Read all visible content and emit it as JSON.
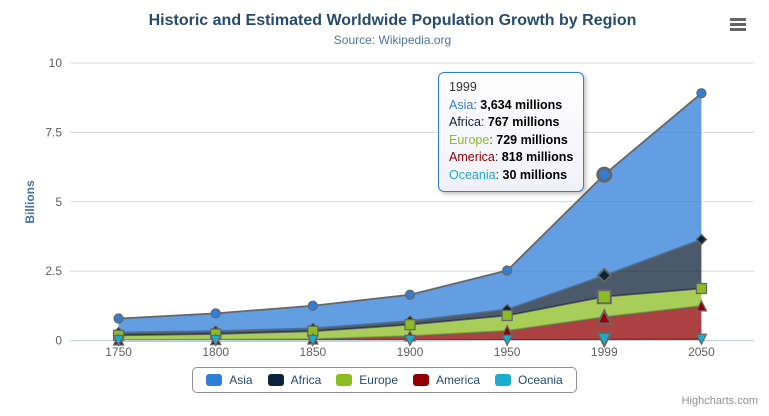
{
  "chart": {
    "title": "Historic and Estimated Worldwide Population Growth by Region",
    "subtitle": "Source: Wikipedia.org",
    "credits": "Highcharts.com"
  },
  "colors": {
    "title_text": "#274b6d",
    "subtitle_text": "#4d759e",
    "axis_label_text": "#606060",
    "y_axis_title_text": "#4572a7",
    "gridline": "#d8d8d8",
    "axis_line": "#c0d0e0",
    "area_outline": "#666666",
    "legend_border": "#909090",
    "legend_text": "#274b6d",
    "tooltip_border": "#2f7ed8",
    "credits_text": "#909090",
    "menu_icon": "#666666"
  },
  "chart_data": {
    "type": "area",
    "stacking": "normal",
    "title": "Historic and Estimated Worldwide Population Growth by Region",
    "subtitle": "Source: Wikipedia.org",
    "categories": [
      "1750",
      "1800",
      "1850",
      "1900",
      "1950",
      "1999",
      "2050"
    ],
    "series": [
      {
        "name": "Asia",
        "color": "#2f7ed8",
        "marker": "circle",
        "values": [
          502,
          635,
          809,
          947,
          1402,
          3634,
          5268
        ]
      },
      {
        "name": "Africa",
        "color": "#0d233a",
        "marker": "diamond",
        "values": [
          106,
          107,
          111,
          133,
          221,
          767,
          1766
        ]
      },
      {
        "name": "Europe",
        "color": "#8bbc21",
        "marker": "square",
        "values": [
          163,
          203,
          276,
          408,
          547,
          729,
          628
        ]
      },
      {
        "name": "America",
        "color": "#910000",
        "marker": "triangle",
        "values": [
          18,
          31,
          54,
          156,
          339,
          818,
          1201
        ]
      },
      {
        "name": "Oceania",
        "color": "#1aadce",
        "marker": "triangle-down",
        "values": [
          2,
          2,
          2,
          6,
          13,
          30,
          46
        ]
      }
    ],
    "values_unit": "millions",
    "xlabel": "",
    "ylabel": "Billions",
    "yticks": [
      0,
      2.5,
      5,
      7.5,
      10
    ],
    "ylim": [
      0,
      10
    ],
    "grid": "horizontal",
    "legend_position": "bottom",
    "legend_entries": [
      "Asia",
      "Africa",
      "Europe",
      "America",
      "Oceania"
    ],
    "hovered_category": "1999",
    "hover_index": 5
  },
  "tooltip": {
    "header": "1999",
    "rows": [
      {
        "name": "Asia",
        "color": "#2f7ed8",
        "value": "3,634 millions"
      },
      {
        "name": "Africa",
        "color": "#0d233a",
        "value": "767 millions"
      },
      {
        "name": "Europe",
        "color": "#8bbc21",
        "value": "729 millions"
      },
      {
        "name": "America",
        "color": "#910000",
        "value": "818 millions"
      },
      {
        "name": "Oceania",
        "color": "#1aadce",
        "value": "30 millions"
      }
    ]
  }
}
